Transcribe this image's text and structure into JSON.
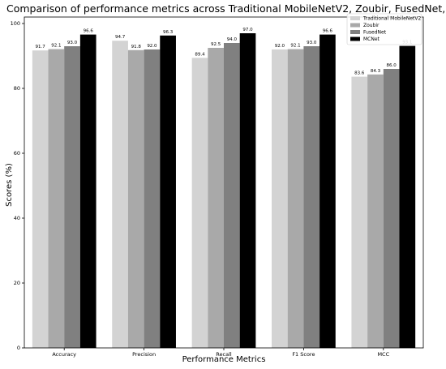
{
  "chart_data": {
    "type": "bar",
    "title": "Comparison of performance metrics across Traditional MobileNetV2, Zoubir, FusedNet, MCNet models",
    "xlabel": "Performance Metrics",
    "ylabel": "Scores (%)",
    "ylim": [
      0,
      102
    ],
    "yticks": [
      0,
      20,
      40,
      60,
      80,
      100
    ],
    "categories": [
      "Accuracy",
      "Precision",
      "Recall",
      "F1 Score",
      "MCC"
    ],
    "series": [
      {
        "name": "Traditional MobileNetV2",
        "color": "#d3d3d3",
        "values": [
          91.7,
          94.7,
          89.4,
          92.0,
          83.6
        ]
      },
      {
        "name": "Zoubir",
        "color": "#a9a9a9",
        "values": [
          92.1,
          91.8,
          92.5,
          92.1,
          84.3
        ]
      },
      {
        "name": "FusedNet",
        "color": "#808080",
        "values": [
          93.0,
          92.0,
          94.0,
          93.0,
          86.0
        ]
      },
      {
        "name": "MCNet",
        "color": "#000000",
        "values": [
          96.6,
          96.3,
          97.0,
          96.6,
          93.1
        ]
      }
    ],
    "grid": false,
    "legend_position": "top-right"
  }
}
